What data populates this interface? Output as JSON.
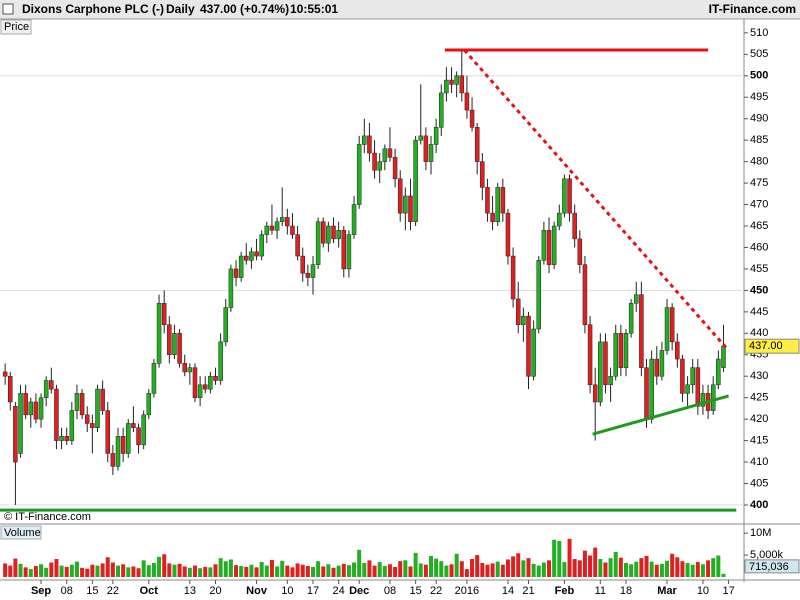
{
  "chart_data": {
    "type": "candlestick",
    "title": "Dixons Carphone PLC (-)",
    "interval": "Daily",
    "quote": "437.00 (+0.74%)",
    "time": "10:55:01",
    "source": "IT-Finance.com",
    "price_label": "Price",
    "copyright": "© IT-Finance.com",
    "volume_label": "Volume",
    "up_color": "#22b022",
    "down_color": "#e02020",
    "ohlc": [
      [
        431,
        433,
        428,
        430
      ],
      [
        430,
        431,
        422,
        424
      ],
      [
        423,
        424,
        400,
        410
      ],
      [
        412,
        428,
        411,
        426
      ],
      [
        426,
        428,
        420,
        421
      ],
      [
        421,
        425,
        418,
        424
      ],
      [
        424,
        426,
        419,
        420
      ],
      [
        420,
        426,
        418,
        425
      ],
      [
        425,
        430,
        423,
        429
      ],
      [
        429,
        432,
        426,
        427
      ],
      [
        427,
        428,
        413,
        415
      ],
      [
        415,
        418,
        413,
        416
      ],
      [
        416,
        418,
        414,
        415
      ],
      [
        415,
        424,
        414,
        422
      ],
      [
        422,
        428,
        420,
        426
      ],
      [
        426,
        427,
        420,
        421
      ],
      [
        421,
        423,
        417,
        419
      ],
      [
        419,
        421,
        412,
        418
      ],
      [
        418,
        428,
        417,
        427
      ],
      [
        427,
        429,
        421,
        422
      ],
      [
        422,
        424,
        410,
        412
      ],
      [
        412,
        414,
        407,
        409
      ],
      [
        409,
        418,
        408,
        416
      ],
      [
        416,
        418,
        410,
        412
      ],
      [
        412,
        420,
        411,
        419
      ],
      [
        419,
        423,
        417,
        418
      ],
      [
        418,
        419,
        412,
        414
      ],
      [
        414,
        422,
        413,
        421
      ],
      [
        421,
        427,
        420,
        426
      ],
      [
        426,
        434,
        425,
        433
      ],
      [
        433,
        449,
        432,
        447
      ],
      [
        447,
        450,
        440,
        442
      ],
      [
        442,
        444,
        433,
        435
      ],
      [
        435,
        442,
        434,
        440
      ],
      [
        440,
        441,
        432,
        433
      ],
      [
        433,
        435,
        430,
        431
      ],
      [
        431,
        433,
        428,
        432
      ],
      [
        432,
        433,
        424,
        425
      ],
      [
        425,
        430,
        423,
        428
      ],
      [
        428,
        430,
        426,
        427
      ],
      [
        427,
        431,
        426,
        430
      ],
      [
        430,
        432,
        428,
        429
      ],
      [
        429,
        440,
        428,
        438
      ],
      [
        438,
        448,
        437,
        446
      ],
      [
        446,
        456,
        445,
        455
      ],
      [
        455,
        457,
        451,
        453
      ],
      [
        453,
        459,
        452,
        458
      ],
      [
        458,
        461,
        456,
        457
      ],
      [
        457,
        460,
        455,
        459
      ],
      [
        459,
        462,
        457,
        458
      ],
      [
        458,
        464,
        457,
        463
      ],
      [
        463,
        466,
        461,
        465
      ],
      [
        465,
        470,
        463,
        464
      ],
      [
        464,
        467,
        462,
        466
      ],
      [
        466,
        474,
        465,
        467
      ],
      [
        467,
        469,
        463,
        465
      ],
      [
        465,
        468,
        462,
        463
      ],
      [
        463,
        465,
        457,
        458
      ],
      [
        458,
        460,
        452,
        454
      ],
      [
        454,
        456,
        451,
        453
      ],
      [
        453,
        458,
        449,
        456
      ],
      [
        456,
        467,
        455,
        466
      ],
      [
        466,
        467,
        460,
        461
      ],
      [
        461,
        466,
        459,
        465
      ],
      [
        465,
        467,
        461,
        462
      ],
      [
        462,
        466,
        460,
        464
      ],
      [
        464,
        465,
        453,
        455
      ],
      [
        455,
        464,
        453,
        463
      ],
      [
        463,
        472,
        462,
        470
      ],
      [
        470,
        486,
        469,
        484
      ],
      [
        484,
        490,
        482,
        486
      ],
      [
        486,
        489,
        480,
        482
      ],
      [
        482,
        485,
        476,
        478
      ],
      [
        478,
        482,
        475,
        480
      ],
      [
        480,
        484,
        478,
        483
      ],
      [
        483,
        488,
        480,
        481
      ],
      [
        481,
        483,
        474,
        476
      ],
      [
        476,
        478,
        466,
        468
      ],
      [
        468,
        474,
        464,
        472
      ],
      [
        472,
        476,
        464,
        466
      ],
      [
        466,
        486,
        465,
        485
      ],
      [
        485,
        498,
        484,
        486
      ],
      [
        486,
        488,
        478,
        480
      ],
      [
        480,
        486,
        477,
        484
      ],
      [
        484,
        490,
        482,
        488
      ],
      [
        488,
        498,
        486,
        496
      ],
      [
        496,
        502,
        494,
        499
      ],
      [
        499,
        502,
        496,
        498
      ],
      [
        498,
        501,
        495,
        500
      ],
      [
        500,
        506,
        494,
        496
      ],
      [
        496,
        500,
        490,
        492
      ],
      [
        492,
        495,
        487,
        488
      ],
      [
        488,
        489,
        477,
        480
      ],
      [
        480,
        482,
        471,
        474
      ],
      [
        474,
        476,
        466,
        468
      ],
      [
        468,
        472,
        464,
        466
      ],
      [
        466,
        475,
        465,
        474
      ],
      [
        474,
        476,
        466,
        468
      ],
      [
        468,
        469,
        456,
        458
      ],
      [
        458,
        460,
        446,
        448
      ],
      [
        448,
        452,
        440,
        442
      ],
      [
        442,
        446,
        438,
        444
      ],
      [
        444,
        445,
        427,
        430
      ],
      [
        430,
        443,
        429,
        441
      ],
      [
        441,
        458,
        440,
        457
      ],
      [
        457,
        466,
        456,
        464
      ],
      [
        464,
        467,
        454,
        456
      ],
      [
        456,
        466,
        455,
        465
      ],
      [
        465,
        470,
        464,
        468
      ],
      [
        468,
        477,
        467,
        476
      ],
      [
        476,
        477,
        466,
        468
      ],
      [
        468,
        470,
        460,
        462
      ],
      [
        462,
        464,
        454,
        456
      ],
      [
        456,
        458,
        440,
        442
      ],
      [
        442,
        444,
        426,
        428
      ],
      [
        428,
        432,
        415,
        424
      ],
      [
        424,
        440,
        423,
        438
      ],
      [
        438,
        440,
        426,
        428
      ],
      [
        428,
        432,
        424,
        430
      ],
      [
        430,
        442,
        429,
        440
      ],
      [
        440,
        442,
        430,
        432
      ],
      [
        432,
        441,
        430,
        440
      ],
      [
        440,
        448,
        439,
        447
      ],
      [
        447,
        452,
        445,
        449
      ],
      [
        449,
        452,
        430,
        432
      ],
      [
        432,
        434,
        418,
        420
      ],
      [
        420,
        436,
        419,
        434
      ],
      [
        434,
        437,
        428,
        430
      ],
      [
        430,
        438,
        429,
        436
      ],
      [
        436,
        448,
        435,
        446
      ],
      [
        446,
        447,
        436,
        438
      ],
      [
        438,
        440,
        432,
        434
      ],
      [
        434,
        435,
        424,
        426
      ],
      [
        426,
        430,
        423,
        428
      ],
      [
        428,
        434,
        426,
        432
      ],
      [
        432,
        434,
        421,
        423
      ],
      [
        423,
        428,
        421,
        426
      ],
      [
        426,
        428,
        420,
        422
      ],
      [
        422,
        430,
        421,
        428
      ],
      [
        428,
        436,
        427,
        434
      ],
      [
        432,
        442,
        431,
        437
      ]
    ],
    "volume": [
      3100000,
      2600000,
      4200000,
      3000000,
      2200000,
      1800000,
      2500000,
      2900000,
      2100000,
      3300000,
      4100000,
      2600000,
      2300000,
      2800000,
      3500000,
      2100000,
      1900000,
      2800000,
      2600000,
      3100000,
      4500000,
      3300000,
      2600000,
      2900000,
      2200000,
      2400000,
      2000000,
      3800000,
      2700000,
      3200000,
      4600000,
      5200000,
      3100000,
      2800000,
      3000000,
      2400000,
      2100000,
      2600000,
      2000000,
      2300000,
      2200000,
      2900000,
      4300000,
      3600000,
      4000000,
      2700000,
      2500000,
      2300000,
      2800000,
      2200000,
      3400000,
      2600000,
      3900000,
      2400000,
      3700000,
      2600000,
      2200000,
      3100000,
      2800000,
      2500000,
      2300000,
      3600000,
      2400000,
      2900000,
      2100000,
      2600000,
      3000000,
      2700000,
      3300000,
      6200000,
      3200000,
      3800000,
      2600000,
      3400000,
      2500000,
      2900000,
      2300000,
      3600000,
      3800000,
      2400000,
      5500000,
      3100000,
      2800000,
      4800000,
      4200000,
      3600000,
      2600000,
      2900000,
      5300000,
      3600000,
      1800000,
      4100000,
      5000000,
      3200000,
      2800000,
      3100000,
      3500000,
      2800000,
      4000000,
      4700000,
      5400000,
      3800000,
      4300000,
      3000000,
      2600000,
      3300000,
      3800000,
      8500000,
      8200000,
      3400000,
      8700000,
      4100000,
      3800000,
      6000000,
      4900000,
      6700000,
      4100000,
      3300000,
      4300000,
      5700000,
      4400000,
      3200000,
      2900000,
      3500000,
      4300000,
      4800000,
      3500000,
      2800000,
      3000000,
      3700000,
      5300000,
      4500000,
      3600000,
      3200000,
      2800000,
      3400000,
      2900000,
      3800000,
      4300000,
      4900000,
      715036
    ],
    "last_price_label": "437.00",
    "last_volume_label": "715,036",
    "ylim": [
      396.5,
      513
    ],
    "yticks": [
      400,
      405,
      410,
      415,
      420,
      425,
      430,
      435,
      440,
      445,
      450,
      455,
      460,
      465,
      470,
      475,
      480,
      485,
      490,
      495,
      500,
      505,
      510
    ],
    "volume_ylim": [
      0,
      11400000
    ],
    "volume_yticks": [
      {
        "value": 10000000,
        "label": "10M"
      },
      {
        "value": 5000000,
        "label": "5,000k"
      }
    ],
    "xlim": [
      -1,
      144
    ],
    "xticks": [
      {
        "value": 7,
        "label": "Sep"
      },
      {
        "value": 12,
        "label": "08"
      },
      {
        "value": 17,
        "label": "15"
      },
      {
        "value": 21,
        "label": "22"
      },
      {
        "value": 28,
        "label": "Oct"
      },
      {
        "value": 36,
        "label": "13"
      },
      {
        "value": 41,
        "label": "20"
      },
      {
        "value": 49,
        "label": "Nov"
      },
      {
        "value": 55,
        "label": "10"
      },
      {
        "value": 60,
        "label": "17"
      },
      {
        "value": 65,
        "label": "24"
      },
      {
        "value": 69,
        "label": "Dec"
      },
      {
        "value": 75,
        "label": "08"
      },
      {
        "value": 80,
        "label": "15"
      },
      {
        "value": 84,
        "label": "22"
      },
      {
        "value": 90,
        "label": "2016"
      },
      {
        "value": 98,
        "label": "14"
      },
      {
        "value": 102,
        "label": "21"
      },
      {
        "value": 109,
        "label": "Feb"
      },
      {
        "value": 116,
        "label": "11"
      },
      {
        "value": 121,
        "label": "18"
      },
      {
        "value": 129,
        "label": "Mar"
      },
      {
        "value": 136,
        "label": "10"
      },
      {
        "value": 141,
        "label": "17"
      }
    ],
    "lines": [
      {
        "x": [
          85.7,
          137
        ],
        "y": [
          506,
          506
        ],
        "color": "#e81010",
        "dashed": false
      },
      {
        "x": [
          89.5,
          141
        ],
        "y": [
          506,
          436
        ],
        "color": "#e81010",
        "dashed": true
      },
      {
        "x": [
          114.5,
          141
        ],
        "y": [
          416.5,
          425.4
        ],
        "color": "#1f9a1f",
        "dashed": false
      },
      {
        "x": [
          -1,
          142.5
        ],
        "y": [
          398.8,
          398.8
        ],
        "color": "#1f9a1f",
        "dashed": false
      }
    ]
  }
}
